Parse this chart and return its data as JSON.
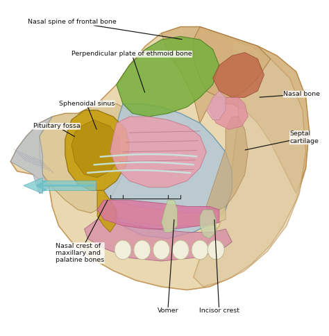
{
  "background_color": "#ffffff",
  "annotations": [
    {
      "text": "Nasal spine of frontal bone",
      "tpos": [
        0.36,
        0.955
      ],
      "apos": [
        0.57,
        0.9
      ],
      "ha": "right"
    },
    {
      "text": "Perpendicular plate of ethmoid bone",
      "tpos": [
        0.22,
        0.855
      ],
      "apos": [
        0.45,
        0.73
      ],
      "ha": "left"
    },
    {
      "text": "Sphenoidal sinus",
      "tpos": [
        0.18,
        0.7
      ],
      "apos": [
        0.3,
        0.615
      ],
      "ha": "left"
    },
    {
      "text": "Pituitary fossa",
      "tpos": [
        0.1,
        0.63
      ],
      "apos": [
        0.235,
        0.595
      ],
      "ha": "left"
    },
    {
      "text": "Nasal bone",
      "tpos": [
        0.88,
        0.73
      ],
      "apos": [
        0.8,
        0.72
      ],
      "ha": "left"
    },
    {
      "text": "Septal\ncartilage",
      "tpos": [
        0.9,
        0.595
      ],
      "apos": [
        0.755,
        0.555
      ],
      "ha": "left"
    },
    {
      "text": "Nasal crest of\nmaxillary and\npalatine bones",
      "tpos": [
        0.17,
        0.235
      ],
      "apos": [
        0.335,
        0.405
      ],
      "ha": "left"
    },
    {
      "text": "Vomer",
      "tpos": [
        0.52,
        0.055
      ],
      "apos": [
        0.54,
        0.345
      ],
      "ha": "center"
    },
    {
      "text": "Incisor crest",
      "tpos": [
        0.68,
        0.055
      ],
      "apos": [
        0.665,
        0.345
      ],
      "ha": "center"
    }
  ]
}
